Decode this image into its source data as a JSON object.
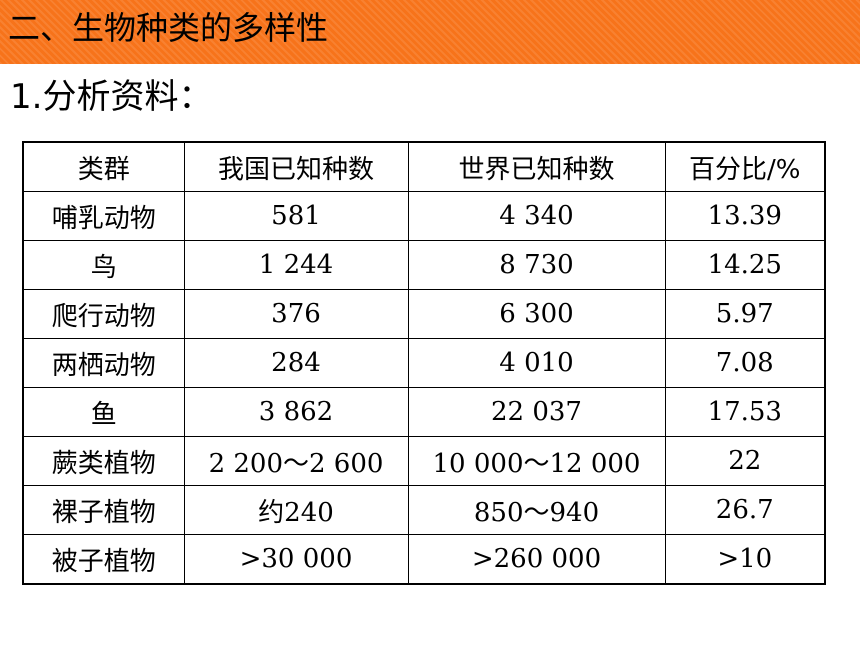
{
  "title": "二、生物种类的多样性",
  "subtitle": "1.分析资料：",
  "colors": {
    "title_bar": "#f7731a",
    "text": "#000000",
    "background": "#ffffff"
  },
  "table": {
    "headers": [
      "类群",
      "我国已知种数",
      "世界已知种数",
      "百分比/%"
    ],
    "rows": [
      [
        "哺乳动物",
        "581",
        "4 340",
        "13.39"
      ],
      [
        "鸟",
        "1 244",
        "8 730",
        "14.25"
      ],
      [
        "爬行动物",
        "376",
        "6 300",
        "5.97"
      ],
      [
        "两栖动物",
        "284",
        "4 010",
        "7.08"
      ],
      [
        "鱼",
        "3 862",
        "22 037",
        "17.53"
      ],
      [
        "蕨类植物",
        "2 200～2 600",
        "10 000～12 000",
        "22"
      ],
      [
        "裸子植物",
        "约240",
        "850～940",
        "26.7"
      ],
      [
        "被子植物",
        ">30 000",
        ">260 000",
        ">10"
      ]
    ]
  }
}
